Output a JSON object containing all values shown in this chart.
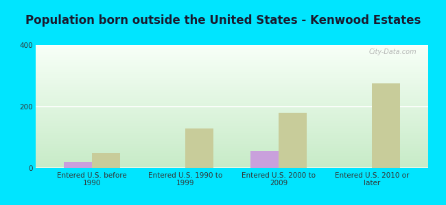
{
  "title": "Population born outside the United States - Kenwood Estates",
  "categories": [
    "Entered U.S. before\n1990",
    "Entered U.S. 1990 to\n1999",
    "Entered U.S. 2000 to\n2009",
    "Entered U.S. 2010 or\nlater"
  ],
  "native_values": [
    20,
    0,
    55,
    0
  ],
  "foreign_values": [
    50,
    130,
    180,
    275
  ],
  "native_color": "#c9a0dc",
  "foreign_color": "#c8cc9a",
  "background_outer": "#00e5ff",
  "ylim": [
    0,
    400
  ],
  "yticks": [
    0,
    200,
    400
  ],
  "bar_width": 0.3,
  "title_fontsize": 12,
  "tick_fontsize": 7.5,
  "legend_fontsize": 9,
  "watermark": "City-Data.com"
}
